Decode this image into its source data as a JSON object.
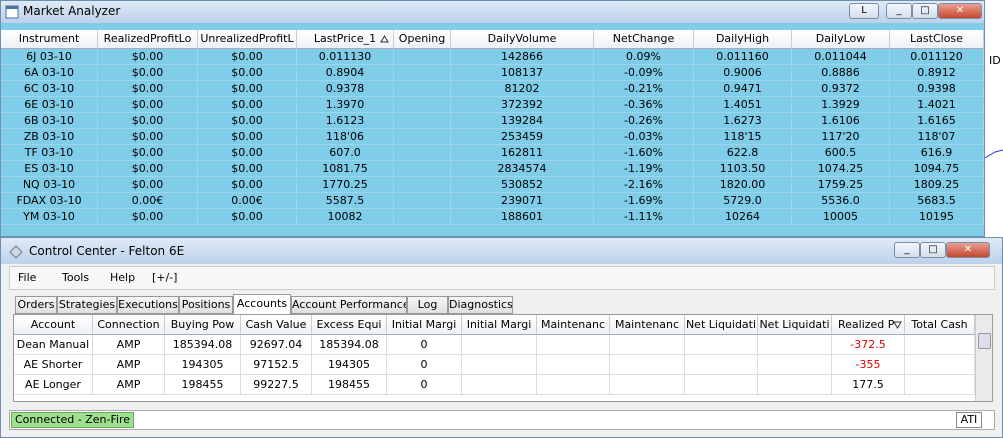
{
  "market_analyzer": {
    "title": "Market Analyzer",
    "layout_button": "L",
    "side_text": "ID",
    "columns": [
      "Instrument",
      "RealizedProfitLo",
      "UnrealizedProfitL",
      "LastPrice_1",
      "Opening",
      "DailyVolume",
      "NetChange",
      "DailyHigh",
      "DailyLow",
      "LastClose"
    ],
    "rows": [
      [
        "6J 03-10",
        "$0.00",
        "$0.00",
        "0.011130",
        null,
        "142866",
        "0.09%",
        "0.011160",
        "0.011044",
        "0.011120"
      ],
      [
        "6A 03-10",
        "$0.00",
        "$0.00",
        "0.8904",
        null,
        "108137",
        "-0.09%",
        "0.9006",
        "0.8886",
        "0.8912"
      ],
      [
        "6C 03-10",
        "$0.00",
        "$0.00",
        "0.9378",
        null,
        "81202",
        "-0.21%",
        "0.9471",
        "0.9372",
        "0.9398"
      ],
      [
        "6E 03-10",
        "$0.00",
        "$0.00",
        "1.3970",
        null,
        "372392",
        "-0.36%",
        "1.4051",
        "1.3929",
        "1.4021"
      ],
      [
        "6B 03-10",
        "$0.00",
        "$0.00",
        "1.6123",
        null,
        "139284",
        "-0.26%",
        "1.6273",
        "1.6106",
        "1.6165"
      ],
      [
        "ZB 03-10",
        "$0.00",
        "$0.00",
        "118'06",
        null,
        "253459",
        "-0.03%",
        "118'15",
        "117'20",
        "118'07"
      ],
      [
        "TF 03-10",
        "$0.00",
        "$0.00",
        "607.0",
        null,
        "162811",
        "-1.60%",
        "622.8",
        "600.5",
        "616.9"
      ],
      [
        "ES 03-10",
        "$0.00",
        "$0.00",
        "1081.75",
        null,
        "2834574",
        "-1.19%",
        "1103.50",
        "1074.25",
        "1094.75"
      ],
      [
        "NQ 03-10",
        "$0.00",
        "$0.00",
        "1770.25",
        null,
        "530852",
        "-2.16%",
        "1820.00",
        "1759.25",
        "1809.25"
      ],
      [
        "FDAX 03-10",
        "0.00€",
        "0.00€",
        "5587.5",
        null,
        "239071",
        "-1.69%",
        "5729.0",
        "5536.0",
        "5683.5"
      ],
      [
        "YM 03-10",
        "$0.00",
        "$0.00",
        "10082",
        null,
        "188601",
        "-1.11%",
        "10264",
        "10005",
        "10195"
      ]
    ]
  },
  "control_center": {
    "title": "Control Center - Felton 6E",
    "menu": [
      "File",
      "Tools",
      "Help",
      "[+/-]"
    ],
    "tabs": [
      "Orders",
      "Strategies",
      "Executions",
      "Positions",
      "Accounts",
      "Account Performance",
      "Log",
      "Diagnostics"
    ],
    "active_tab": 4,
    "columns": [
      "Account",
      "Connection",
      "Buying Pow",
      "Cash Value",
      "Excess Equi",
      "Initial Margi",
      "Initial Margi",
      "Maintenanc",
      "Maintenanc",
      "Net Liquidati",
      "Net Liquidati",
      "Realized P",
      "Total Cash"
    ],
    "rows": [
      [
        "Dean Manual",
        "AMP",
        "185394.08",
        "92697.04",
        "185394.08",
        "0",
        null,
        null,
        null,
        null,
        null,
        "-372.5",
        null
      ],
      [
        "AE Shorter",
        "AMP",
        "194305",
        "97152.5",
        "194305",
        "0",
        null,
        null,
        null,
        null,
        null,
        "-355",
        null
      ],
      [
        "AE Longer",
        "AMP",
        "198455",
        "99227.5",
        "198455",
        "0",
        null,
        null,
        null,
        null,
        null,
        "177.5",
        null
      ]
    ],
    "status": "Connected - Zen-Fire",
    "status_right": "ATI"
  }
}
